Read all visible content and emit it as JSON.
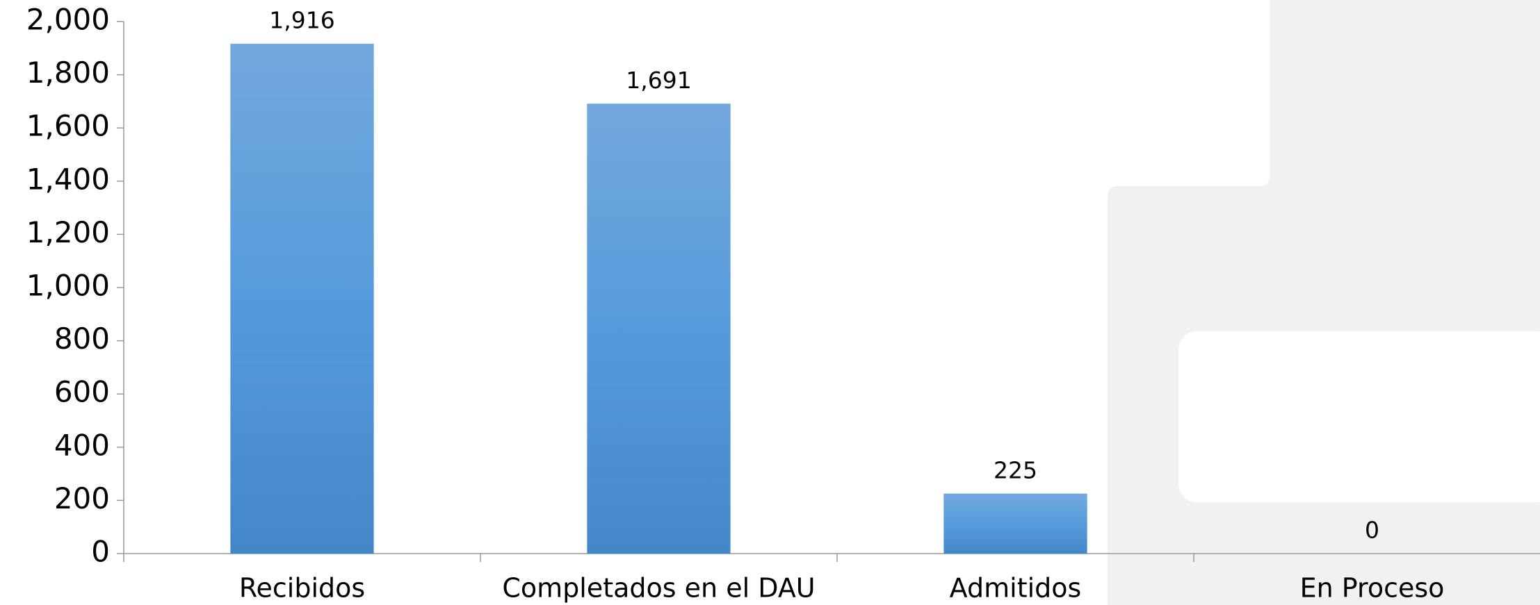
{
  "chart_data": {
    "type": "bar",
    "categories": [
      "Recibidos",
      "Completados en el DAU",
      "Admitidos",
      "En Proceso"
    ],
    "values": [
      1916,
      1691,
      225,
      0
    ],
    "value_labels": [
      "1,916",
      "1,691",
      "225",
      "0"
    ],
    "color": "#5b9bd5",
    "ylim": [
      0,
      2000
    ],
    "yticks": [
      0,
      200,
      400,
      600,
      800,
      {
        "value": 1000,
        "label": "1,000"
      },
      {
        "value": 1200,
        "label": "1,200"
      },
      {
        "value": 1400,
        "label": "1,400"
      },
      {
        "value": 1600,
        "label": "1,600"
      },
      {
        "value": 1800,
        "label": "1,800"
      },
      {
        "value": 2000,
        "label": "2,000"
      }
    ],
    "grid": false
  }
}
